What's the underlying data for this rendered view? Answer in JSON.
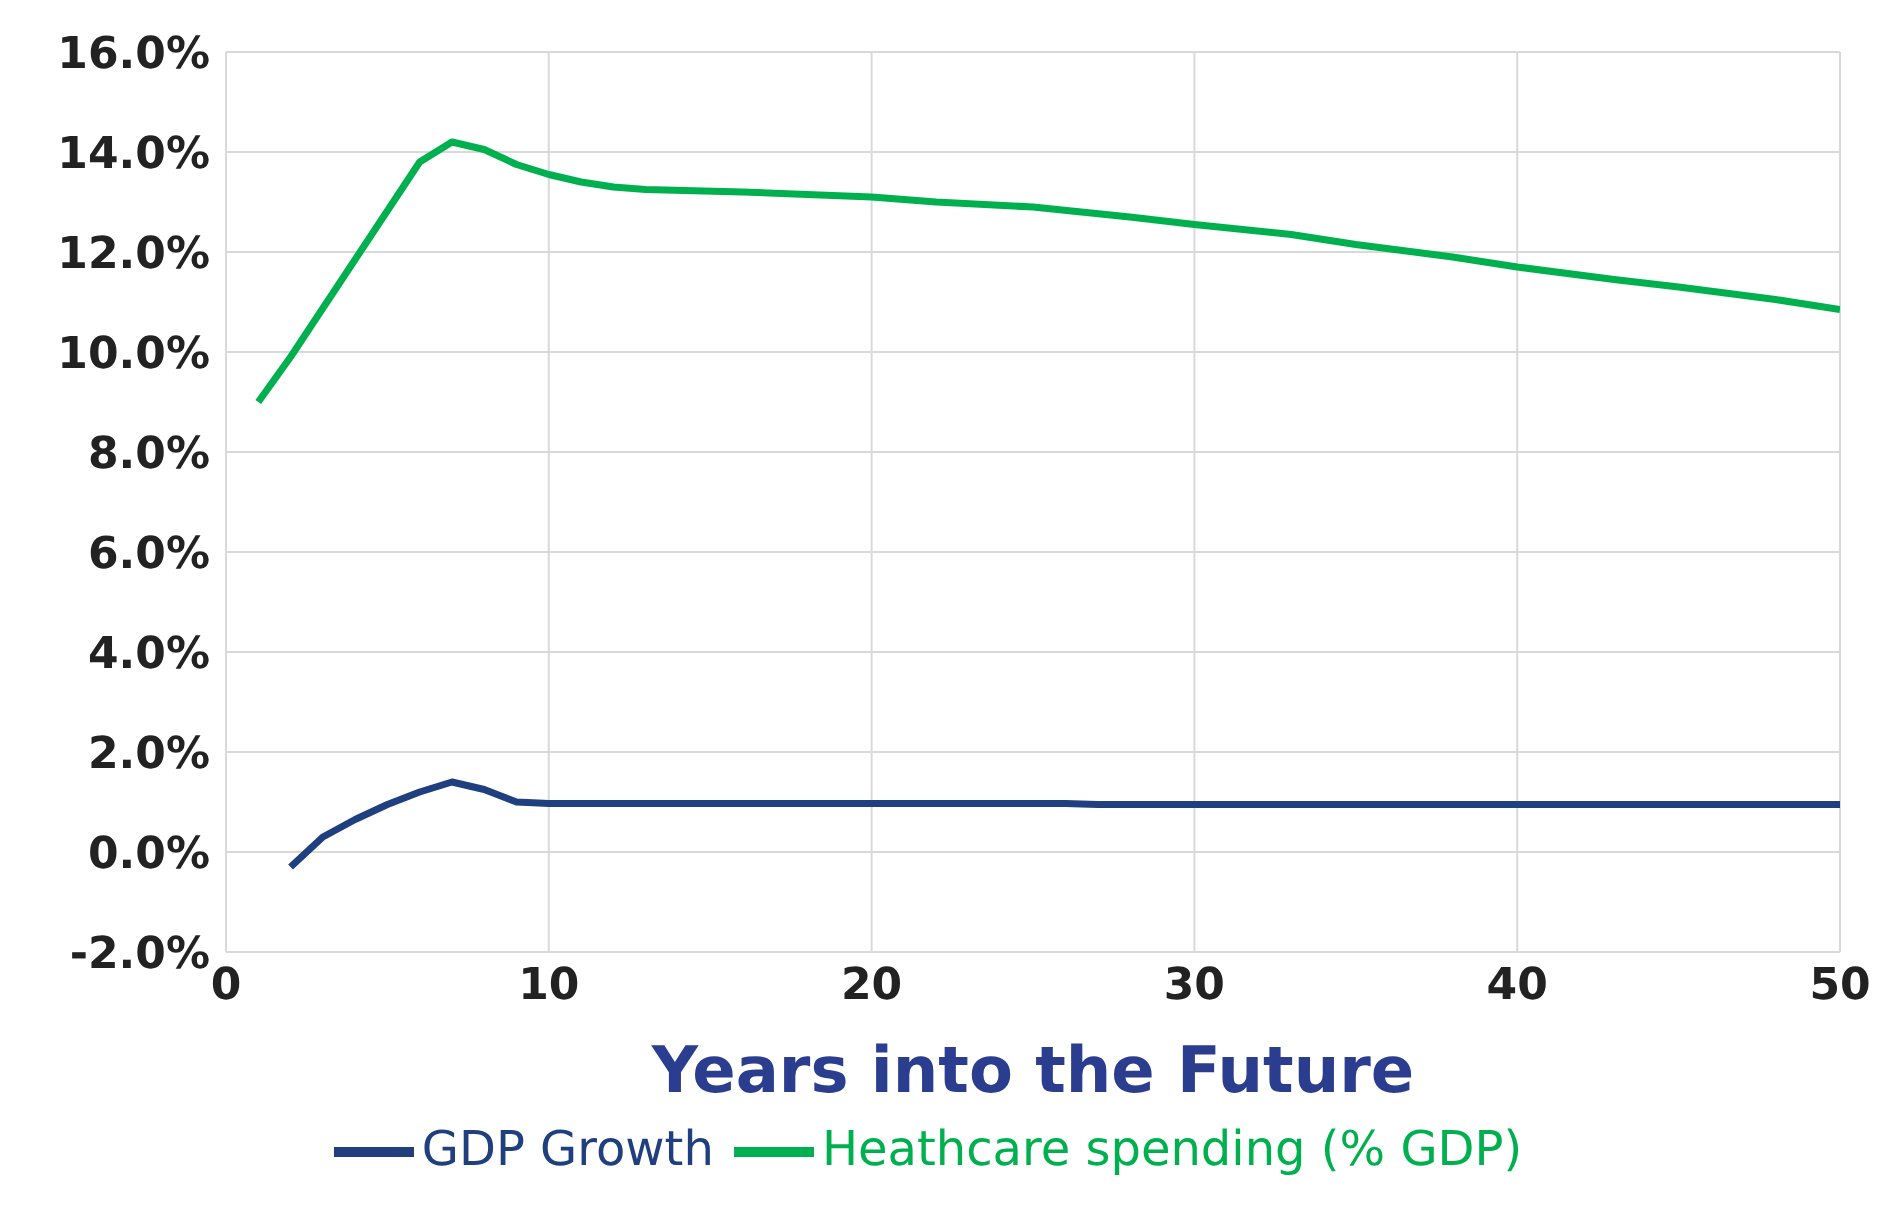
{
  "chart_data": {
    "type": "line",
    "xlabel": "Years into the Future",
    "xlim": [
      0,
      50
    ],
    "xticks": [
      0,
      10,
      20,
      30,
      40,
      50
    ],
    "ylim": [
      -2,
      16
    ],
    "yticks": [
      {
        "value": -2,
        "label": "-2.0%"
      },
      {
        "value": 0,
        "label": "0.0%"
      },
      {
        "value": 2,
        "label": "2.0%"
      },
      {
        "value": 4,
        "label": "4.0%"
      },
      {
        "value": 6,
        "label": "6.0%"
      },
      {
        "value": 8,
        "label": "8.0%"
      },
      {
        "value": 10,
        "label": "10.0%"
      },
      {
        "value": 12,
        "label": "12.0%"
      },
      {
        "value": 14,
        "label": "14.0%"
      },
      {
        "value": 16,
        "label": "16.0%"
      }
    ],
    "grid": true,
    "legend": "bottom",
    "marker": "none",
    "line_style": "solid",
    "series": [
      {
        "name": "GDP Growth",
        "color": "#1f3f7f",
        "x": [
          2,
          3,
          4,
          5,
          6,
          7,
          8,
          9,
          10,
          15,
          20,
          26,
          27,
          35,
          50
        ],
        "values": [
          -0.3,
          0.3,
          0.65,
          0.95,
          1.2,
          1.4,
          1.25,
          1.0,
          0.97,
          0.97,
          0.97,
          0.97,
          0.95,
          0.95,
          0.95
        ]
      },
      {
        "name": "Heathcare spending (% GDP)",
        "color": "#00b04f",
        "x": [
          1,
          2,
          6,
          7,
          8,
          9,
          10,
          11,
          12,
          13,
          16,
          20,
          22,
          25,
          28,
          30,
          33,
          35,
          38,
          40,
          43,
          45,
          48,
          50
        ],
        "values": [
          9.0,
          9.9,
          13.8,
          14.2,
          14.05,
          13.75,
          13.55,
          13.4,
          13.3,
          13.25,
          13.2,
          13.1,
          13.0,
          12.9,
          12.7,
          12.55,
          12.35,
          12.15,
          11.9,
          11.7,
          11.45,
          11.3,
          11.05,
          10.85
        ]
      }
    ]
  }
}
